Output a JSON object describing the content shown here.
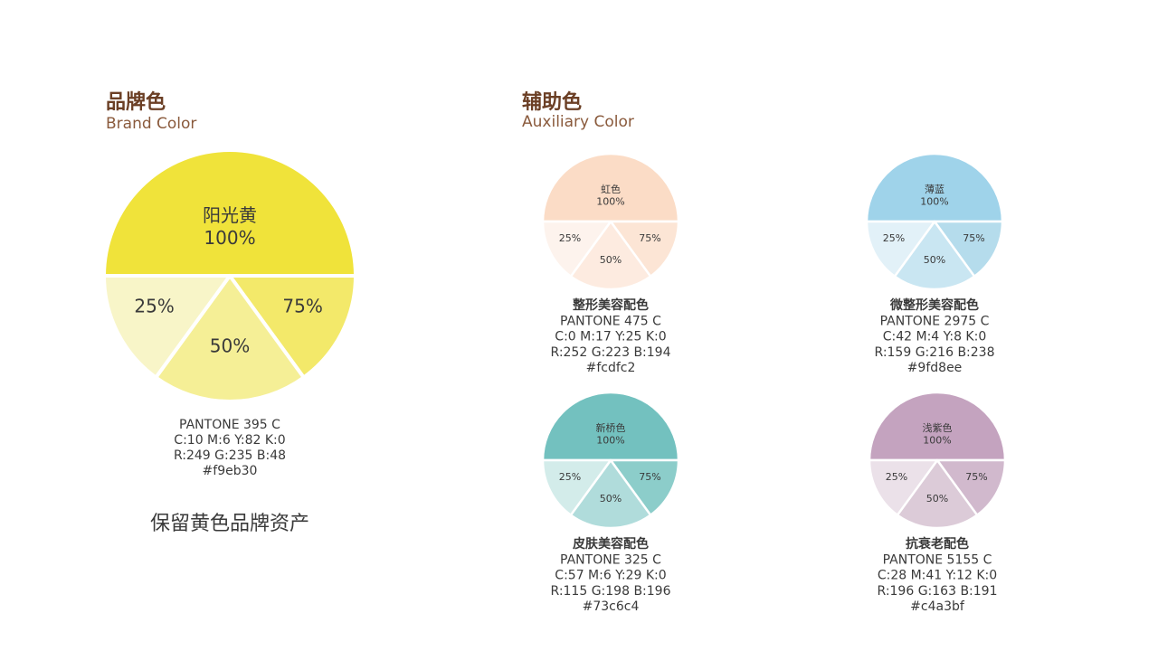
{
  "brand": {
    "title": "品牌色",
    "subtitle": "Brand Color",
    "name": "阳光黄",
    "labels": [
      "100%",
      "75%",
      "50%",
      "25%"
    ],
    "colors": [
      "#f0e33a",
      "#f3e96a",
      "#f5ef96",
      "#f8f5c8"
    ],
    "pantone": "PANTONE 395 C",
    "cmyk": "C:10  M:6  Y:82 K:0",
    "rgb": "R:249  G:235  B:48",
    "hex": "#f9eb30",
    "note": "保留黄色品牌资产"
  },
  "auxiliary": {
    "title": "辅助色",
    "subtitle": "Auxiliary Color",
    "swatches": [
      {
        "name": "虹色",
        "labels": [
          "100%",
          "75%",
          "50%",
          "25%"
        ],
        "colors": [
          "#fbdcc6",
          "#fce5d5",
          "#fdebe0",
          "#fdf3ed"
        ],
        "usage": "整形美容配色",
        "pantone": "PANTONE 475 C",
        "cmyk": "C:0  M:17  Y:25  K:0",
        "rgb": "R:252  G:223  B:194",
        "hex": "#fcdfc2"
      },
      {
        "name": "薄蓝",
        "labels": [
          "100%",
          "75%",
          "50%",
          "25%"
        ],
        "colors": [
          "#9fd3ea",
          "#b5dcec",
          "#c9e6f2",
          "#e2f1f8"
        ],
        "usage": "微整形美容配色",
        "pantone": "PANTONE 2975 C",
        "cmyk": "C:42  M:4  Y:8  K:0",
        "rgb": "R:159  G:216  B:238",
        "hex": "#9fd8ee"
      },
      {
        "name": "新桥色",
        "labels": [
          "100%",
          "75%",
          "50%",
          "25%"
        ],
        "colors": [
          "#73c1bf",
          "#8ccdca",
          "#b0dcdb",
          "#d3ecea"
        ],
        "usage": "皮肤美容配色",
        "pantone": "PANTONE 325 C",
        "cmyk": "C:57  M:6  Y:29  K:0",
        "rgb": "R:115  G:198  B:196",
        "hex": "#73c6c4"
      },
      {
        "name": "浅紫色",
        "labels": [
          "100%",
          "75%",
          "50%",
          "25%"
        ],
        "colors": [
          "#c4a3bf",
          "#d1b9cd",
          "#dccbd8",
          "#ebe1e9"
        ],
        "usage": "抗衰老配色",
        "pantone": "PANTONE 5155 C",
        "cmyk": "C:28  M:41  Y:12  K:0",
        "rgb": "R:196  G:163  B:191",
        "hex": "#c4a3bf"
      }
    ]
  }
}
